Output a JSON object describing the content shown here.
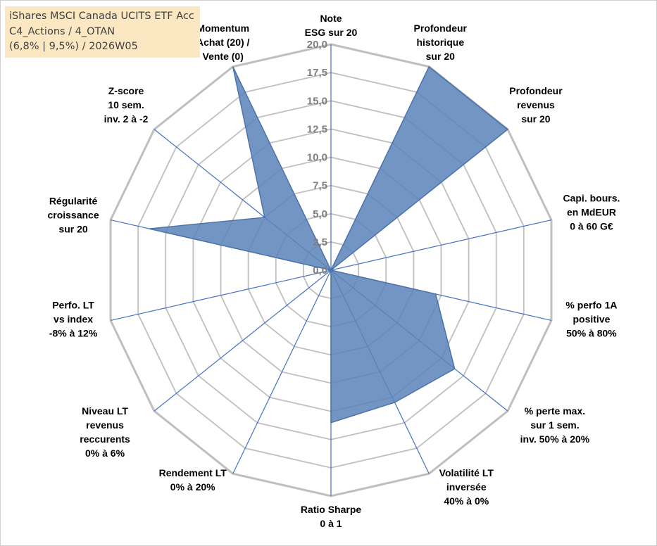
{
  "legend": {
    "line1": "iShares MSCI Canada UCITS ETF Acc",
    "line2": "C4_Actions / 4_OTAN",
    "line3": "(6,8% | 9,5%) / 2026W05",
    "background": "#fbe8c3"
  },
  "chart_data": {
    "type": "radar",
    "title": "",
    "rmin": 0,
    "rmax": 20,
    "tick_step": 2.5,
    "tick_labels": [
      "0,0",
      "2,5",
      "5,0",
      "7,5",
      "10,0",
      "12,5",
      "15,0",
      "17,5",
      "20,0"
    ],
    "axes": [
      [
        "Note",
        "ESG sur 20"
      ],
      [
        "Profondeur",
        "historique",
        "sur 20"
      ],
      [
        "Profondeur",
        "revenus",
        "sur 20"
      ],
      [
        "Capi. bours.",
        "en MdEUR",
        "0 à 60 G€"
      ],
      [
        "% perfo 1A",
        "positive",
        "50% à 80%"
      ],
      [
        "% perte max.",
        "sur 1 sem.",
        "inv. 50% à 20%"
      ],
      [
        "Volatilité LT",
        "inversée",
        "40% à 0%"
      ],
      [
        "Ratio Sharpe",
        "0 à 1"
      ],
      [
        "Rendement LT",
        "0% à 20%"
      ],
      [
        "Niveau LT",
        "revenus",
        "reccurents",
        "0% à 6%"
      ],
      [
        "Perfo. LT",
        "vs index",
        "-8% à 12%"
      ],
      [
        "Régularité",
        "croissance",
        "sur 20"
      ],
      [
        "Z-score",
        "10 sem.",
        "inv. 2 à -2"
      ],
      [
        "Momentum",
        "Achat (20) /",
        "Vente (0)"
      ]
    ],
    "series": [
      {
        "name": "iShares MSCI Canada UCITS ETF Acc",
        "values": [
          0,
          20,
          20,
          0,
          9.5,
          14,
          13,
          13.5,
          0,
          0,
          0,
          16.5,
          7.5,
          20
        ]
      }
    ],
    "fill_color": "#5b82b8",
    "stroke_color": "#4d73aa",
    "grid_color": "#bfbfbf",
    "spoke_color": "#4472c4"
  }
}
